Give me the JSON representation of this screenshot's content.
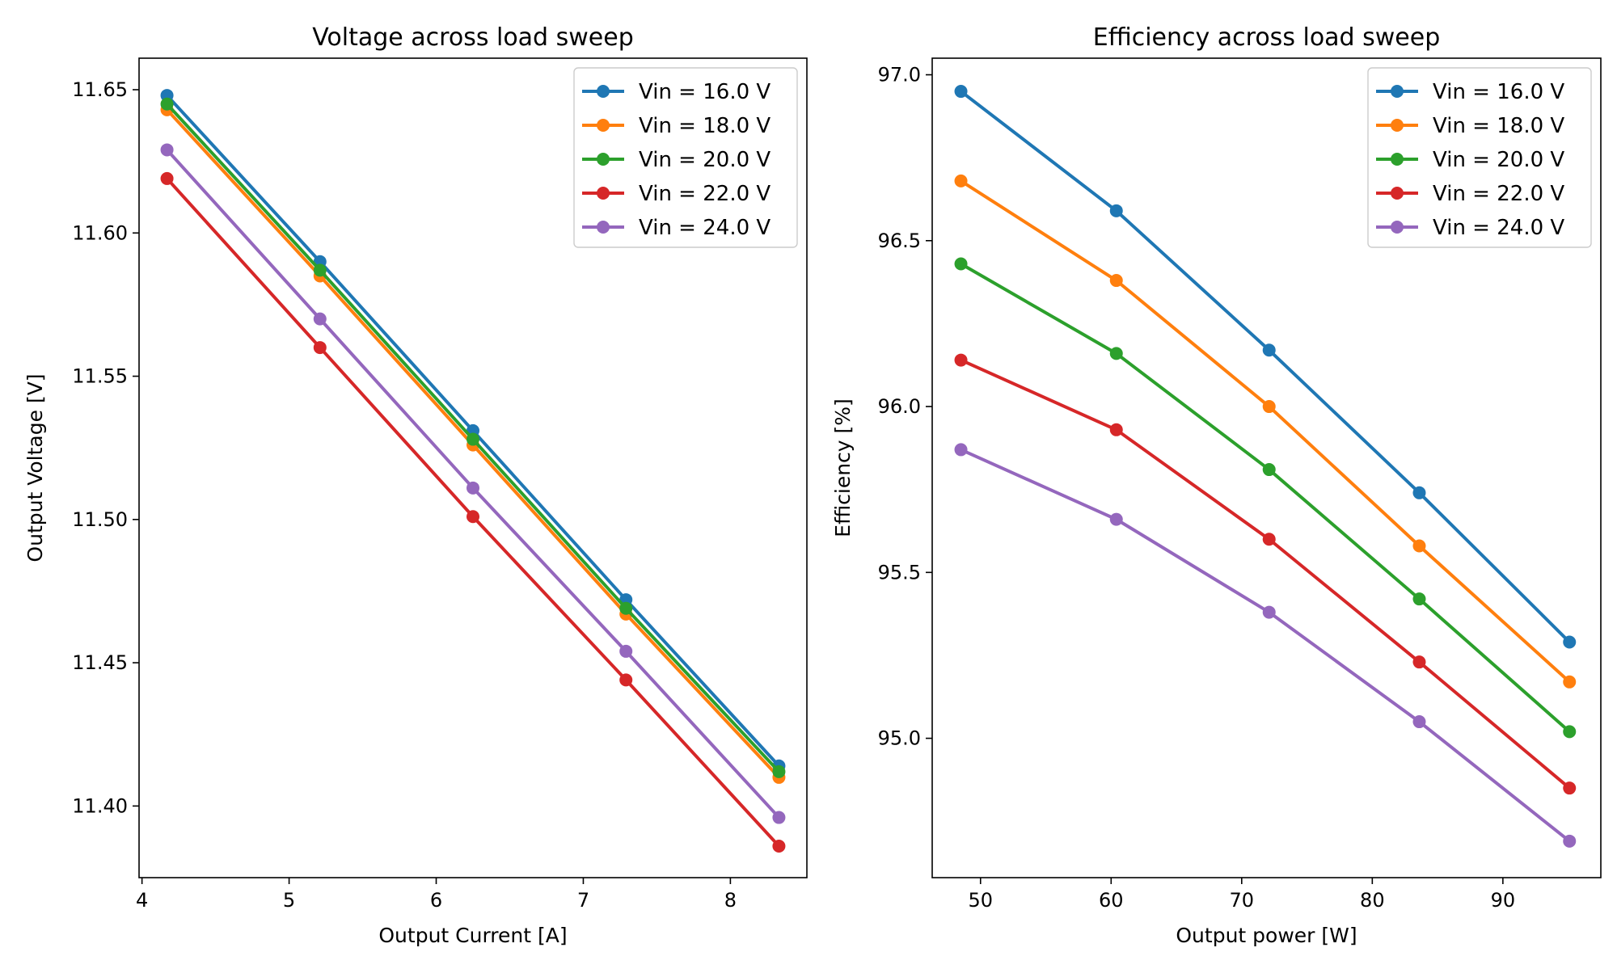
{
  "colors": {
    "series": [
      "#1f77b4",
      "#ff7f0e",
      "#2ca02c",
      "#d62728",
      "#9467bd"
    ],
    "axes": "#000000",
    "legend_border": "#cccccc"
  },
  "chart_data": [
    {
      "type": "line",
      "title": "Voltage across load sweep",
      "xlabel": "Output Current [A]",
      "ylabel": "Output Voltage [V]",
      "xlim": [
        3.98,
        8.52
      ],
      "ylim": [
        11.375,
        11.661
      ],
      "xticks": [
        4,
        5,
        6,
        7,
        8
      ],
      "xtick_labels": [
        "4",
        "5",
        "6",
        "7",
        "8"
      ],
      "yticks": [
        11.4,
        11.45,
        11.5,
        11.55,
        11.6,
        11.65
      ],
      "ytick_labels": [
        "11.40",
        "11.45",
        "11.50",
        "11.55",
        "11.60",
        "11.65"
      ],
      "grid": false,
      "legend_position": "top-right",
      "x": [
        4.17,
        5.21,
        6.25,
        7.29,
        8.33
      ],
      "series": [
        {
          "name": "Vin = 16.0 V",
          "values": [
            11.648,
            11.59,
            11.531,
            11.472,
            11.414
          ]
        },
        {
          "name": "Vin = 18.0 V",
          "values": [
            11.643,
            11.585,
            11.526,
            11.467,
            11.41
          ]
        },
        {
          "name": "Vin = 20.0 V",
          "values": [
            11.645,
            11.587,
            11.528,
            11.469,
            11.412
          ]
        },
        {
          "name": "Vin = 22.0 V",
          "values": [
            11.619,
            11.56,
            11.501,
            11.444,
            11.386
          ]
        },
        {
          "name": "Vin = 24.0 V",
          "values": [
            11.629,
            11.57,
            11.511,
            11.454,
            11.396
          ]
        }
      ]
    },
    {
      "type": "line",
      "title": "Efficiency across load sweep",
      "xlabel": "Output power [W]",
      "ylabel": "Efficiency [%]",
      "xlim": [
        46.3,
        97.5
      ],
      "ylim": [
        94.58,
        97.05
      ],
      "xticks": [
        50,
        60,
        70,
        80,
        90
      ],
      "xtick_labels": [
        "50",
        "60",
        "70",
        "80",
        "90"
      ],
      "yticks": [
        95.0,
        95.5,
        96.0,
        96.5,
        97.0
      ],
      "ytick_labels": [
        "95.0",
        "95.5",
        "96.0",
        "96.5",
        "97.0"
      ],
      "grid": false,
      "legend_position": "top-right",
      "x": [
        48.5,
        60.4,
        72.1,
        83.6,
        95.1
      ],
      "series": [
        {
          "name": "Vin = 16.0 V",
          "values": [
            96.95,
            96.59,
            96.17,
            95.74,
            95.29
          ]
        },
        {
          "name": "Vin = 18.0 V",
          "values": [
            96.68,
            96.38,
            96.0,
            95.58,
            95.17
          ]
        },
        {
          "name": "Vin = 20.0 V",
          "values": [
            96.43,
            96.16,
            95.81,
            95.42,
            95.02
          ]
        },
        {
          "name": "Vin = 22.0 V",
          "values": [
            96.14,
            95.93,
            95.6,
            95.23,
            94.85
          ]
        },
        {
          "name": "Vin = 24.0 V",
          "values": [
            95.87,
            95.66,
            95.38,
            95.05,
            94.69
          ]
        }
      ]
    }
  ]
}
